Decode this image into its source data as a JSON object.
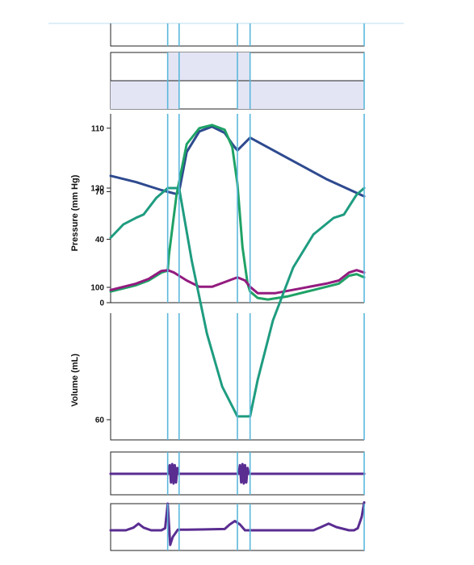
{
  "colors": {
    "aortic": "#2e4a8f",
    "ventricular": "#1fa266",
    "volume": "#1f9c80",
    "atrial": "#931b7f",
    "sound": "#5a2d91",
    "ecg": "#5a2d91",
    "phase_line": "#5bb8dc",
    "phase_fill": "#e3e5f5",
    "top_rule": "#bcdff0"
  },
  "phase_markers": [
    0.225,
    0.27,
    0.5,
    0.55
  ],
  "chart_data": [
    {
      "type": "line",
      "panel": "pressure",
      "xlabel": "",
      "ylabel": "Pressure (mm Hg)",
      "yticks": [
        0,
        40,
        70,
        110
      ],
      "ylim": [
        0,
        115
      ],
      "xlim": [
        0,
        1
      ],
      "series": [
        {
          "color_key": "aortic",
          "x": [
            0,
            0.1,
            0.2,
            0.26,
            0.27,
            0.3,
            0.35,
            0.4,
            0.45,
            0.48,
            0.5,
            0.55,
            0.7,
            0.85,
            1.0
          ],
          "y": [
            80,
            76,
            71,
            68.5,
            70,
            95,
            108,
            111,
            107,
            100,
            96,
            104,
            91,
            78,
            67
          ]
        },
        {
          "color_key": "ventricular",
          "x": [
            0,
            0.1,
            0.15,
            0.2,
            0.22,
            0.225,
            0.23,
            0.26,
            0.3,
            0.35,
            0.4,
            0.45,
            0.48,
            0.5,
            0.52,
            0.54,
            0.55,
            0.58,
            0.62,
            0.7,
            0.8,
            0.9,
            0.94,
            0.97,
            1.0
          ],
          "y": [
            7,
            11,
            14,
            19,
            20,
            20,
            30,
            68,
            100,
            110,
            112,
            109,
            98,
            75,
            35,
            12,
            7,
            3,
            2,
            4,
            8,
            12,
            17,
            18,
            16
          ]
        },
        {
          "color_key": "atrial",
          "x": [
            0,
            0.1,
            0.15,
            0.2,
            0.225,
            0.25,
            0.27,
            0.3,
            0.35,
            0.4,
            0.45,
            0.5,
            0.53,
            0.55,
            0.58,
            0.65,
            0.75,
            0.85,
            0.9,
            0.94,
            0.97,
            1.0
          ],
          "y": [
            8,
            12,
            15,
            20,
            20.5,
            19,
            17,
            14,
            10,
            10,
            13,
            16,
            14,
            10,
            6,
            6,
            9,
            12,
            14,
            19,
            20.5,
            19
          ]
        }
      ]
    },
    {
      "type": "line",
      "panel": "volume",
      "xlabel": "",
      "ylabel": "Volume (mL)",
      "yticks": [
        60,
        100,
        130
      ],
      "ylim": [
        50,
        132
      ],
      "xlim": [
        0,
        1
      ],
      "series": [
        {
          "color_key": "volume",
          "x": [
            0,
            0.05,
            0.1,
            0.13,
            0.18,
            0.225,
            0.27,
            0.32,
            0.38,
            0.44,
            0.5,
            0.55,
            0.58,
            0.64,
            0.72,
            0.8,
            0.88,
            0.92,
            0.97,
            1.0
          ],
          "y": [
            115,
            119,
            121,
            122,
            127,
            130,
            130,
            108,
            86,
            70,
            61,
            61,
            72,
            90,
            106,
            116,
            121,
            122,
            128,
            130
          ]
        }
      ]
    },
    {
      "type": "line",
      "panel": "heart-sounds",
      "xlabel": "",
      "ylabel": "",
      "xlim": [
        0,
        1
      ],
      "series": [
        {
          "color_key": "sound",
          "x": [
            0,
            0.228,
            0.233,
            0.238,
            0.243,
            0.248,
            0.253,
            0.258,
            0.263,
            0.268,
            1.0
          ],
          "y": [
            0,
            0,
            0.9,
            -0.9,
            1,
            -1,
            0.9,
            -0.9,
            0.6,
            0,
            0
          ]
        },
        {
          "color_key": "sound",
          "x": [
            0,
            0.505,
            0.51,
            0.515,
            0.52,
            0.525,
            0.53,
            0.535,
            0.54,
            0.545,
            1.0
          ],
          "y": [
            0,
            0,
            0.9,
            -0.9,
            1,
            -1,
            0.9,
            -0.9,
            0.6,
            0,
            0
          ]
        }
      ]
    },
    {
      "type": "line",
      "panel": "ecg",
      "xlabel": "",
      "ylabel": "",
      "xlim": [
        0,
        1
      ],
      "series": [
        {
          "color_key": "ecg",
          "x": [
            0,
            0.06,
            0.09,
            0.11,
            0.13,
            0.16,
            0.2,
            0.215,
            0.225,
            0.235,
            0.245,
            0.265,
            0.3,
            0.45,
            0.47,
            0.49,
            0.51,
            0.53,
            0.8,
            0.83,
            0.86,
            0.89,
            0.94,
            0.96,
            0.975,
            0.99,
            1.0
          ],
          "y": [
            0,
            0,
            0.1,
            0.25,
            0.1,
            0,
            0,
            0.08,
            1,
            -0.55,
            -0.25,
            0.02,
            0.02,
            0.05,
            0.22,
            0.35,
            0.22,
            0,
            0,
            0.12,
            0.25,
            0.12,
            0,
            0,
            0.08,
            0.5,
            1.05
          ]
        }
      ]
    }
  ]
}
